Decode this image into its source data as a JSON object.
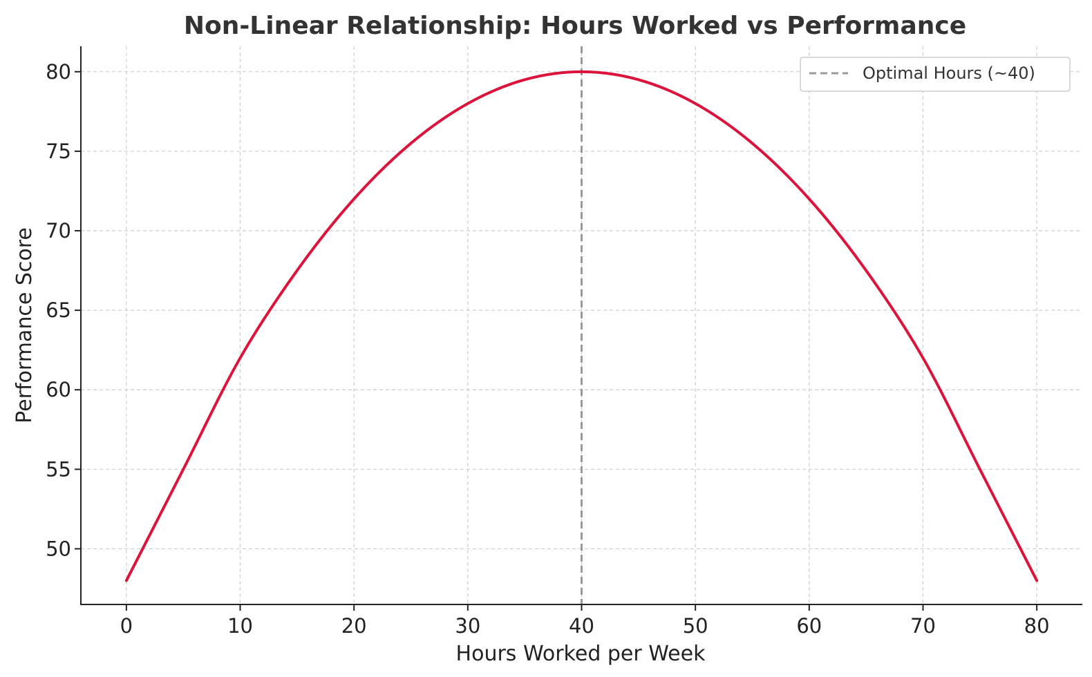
{
  "chart_data": {
    "type": "line",
    "title": "Non-Linear Relationship: Hours Worked vs Performance",
    "xlabel": "Hours Worked per Week",
    "ylabel": "Performance Score",
    "xlim": [
      -4,
      84
    ],
    "ylim": [
      46.5,
      81.6
    ],
    "xticks": [
      0,
      10,
      20,
      30,
      40,
      50,
      60,
      70,
      80
    ],
    "yticks": [
      50,
      55,
      60,
      65,
      70,
      75,
      80
    ],
    "grid": true,
    "legend_position": "top-right",
    "series": [
      {
        "name": "",
        "color": "#dc143c",
        "x": [
          0,
          5,
          10,
          15,
          20,
          25,
          30,
          35,
          40,
          45,
          50,
          55,
          60,
          65,
          70,
          75,
          80
        ],
        "y": [
          48,
          55,
          62,
          67.5,
          72,
          75.5,
          78,
          79.5,
          80,
          79.5,
          78,
          75.5,
          72,
          67.5,
          62,
          55,
          48
        ]
      }
    ],
    "annotations": [
      {
        "type": "vline",
        "x": 40,
        "label": "Optimal Hours (~40)",
        "color": "#999999",
        "style": "dashed"
      }
    ]
  }
}
